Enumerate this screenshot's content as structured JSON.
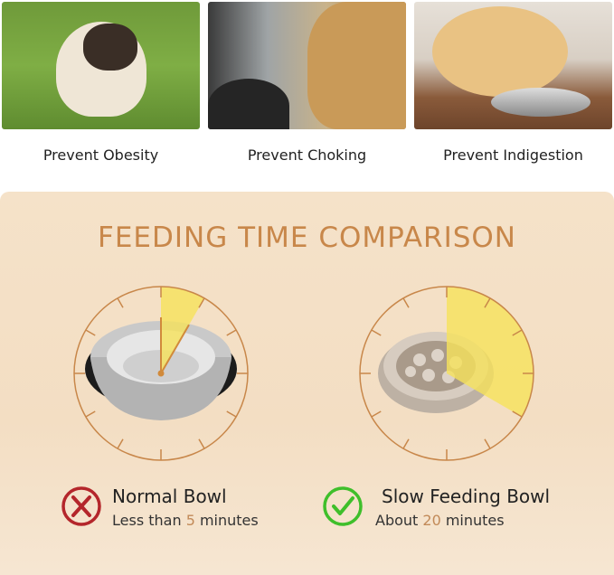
{
  "benefits": [
    {
      "label": "Prevent Obesity",
      "image": "pug-on-grass-photo"
    },
    {
      "label": "Prevent Choking",
      "image": "dog-mouth-check-photo"
    },
    {
      "label": "Prevent Indigestion",
      "image": "dog-with-bowl-photo"
    }
  ],
  "comparison": {
    "title": "FEEDING TIME COMPARISON",
    "normal": {
      "name": "Normal Bowl",
      "prefix": "Less than ",
      "number": "5",
      "suffix": " minutes",
      "icon": "cross-circle-icon",
      "icon_color": "#b4262b",
      "wedge_minutes": 5
    },
    "slow": {
      "name": "Slow Feeding Bowl",
      "prefix": "About ",
      "number": "20",
      "suffix": " minutes",
      "icon": "check-circle-icon",
      "icon_color": "#3fbf2b",
      "wedge_minutes": 20
    }
  },
  "colors": {
    "accent": "#c8874a",
    "wedge": "#f6e25a",
    "panel": "#f4dfc5"
  }
}
